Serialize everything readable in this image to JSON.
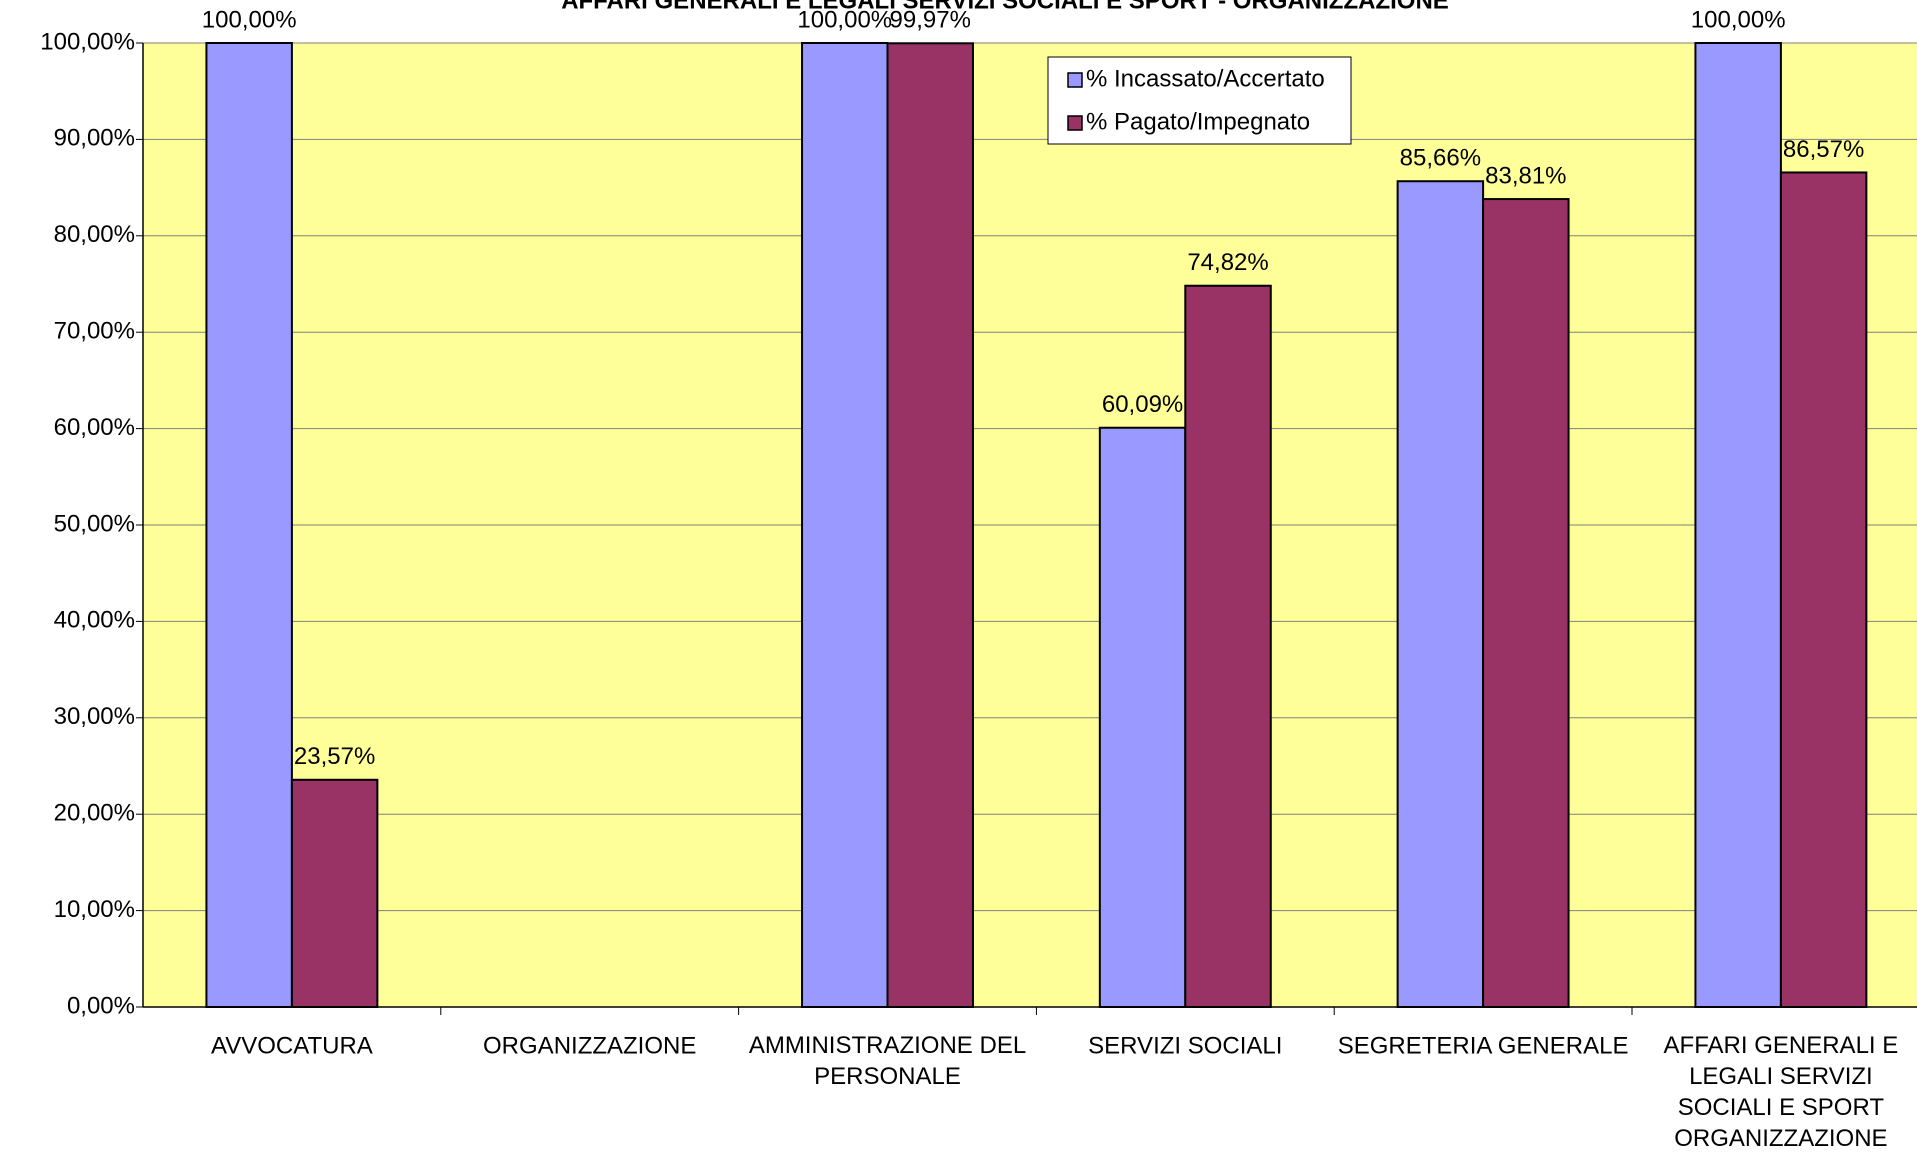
{
  "chart_data": {
    "type": "bar",
    "title": "AFFARI GENERALI E LEGALI SERVIZI SOCIALI E SPORT - ORGANIZZAZIONE",
    "categories": [
      "AVVOCATURA",
      "ORGANIZZAZIONE",
      "AMMINISTRAZIONE DEL PERSONALE",
      "SERVIZI SOCIALI",
      "SEGRETERIA GENERALE",
      "AFFARI GENERALI E LEGALI SERVIZI SOCIALI E SPORT ORGANIZZAZIONE"
    ],
    "series": [
      {
        "name": "% Incassato/Accertato",
        "color": "#9999ff",
        "values": [
          100,
          null,
          100,
          60.09,
          85.66,
          100
        ],
        "value_labels": [
          "100,00%",
          null,
          "100,00%",
          "60,09%",
          "85,66%",
          "100,00%"
        ]
      },
      {
        "name": "% Pagato/Impegnato",
        "color": "#993366",
        "values": [
          23.57,
          null,
          99.97,
          74.82,
          83.81,
          86.57
        ],
        "value_labels": [
          "23,57%",
          null,
          "99,97%",
          "74,82%",
          "83,81%",
          "86,57%"
        ]
      }
    ],
    "ylim": [
      0,
      100
    ],
    "yticks": [
      {
        "value": 0,
        "label": "0,00%"
      },
      {
        "value": 10,
        "label": "10,00%"
      },
      {
        "value": 20,
        "label": "20,00%"
      },
      {
        "value": 30,
        "label": "30,00%"
      },
      {
        "value": 40,
        "label": "40,00%"
      },
      {
        "value": 50,
        "label": "50,00%"
      },
      {
        "value": 60,
        "label": "60,00%"
      },
      {
        "value": 70,
        "label": "70,00%"
      },
      {
        "value": 80,
        "label": "80,00%"
      },
      {
        "value": 90,
        "label": "90,00%"
      },
      {
        "value": 100,
        "label": "100,00%"
      }
    ],
    "grid": true,
    "legend": "top-right",
    "plot_background": "#ffff99"
  }
}
